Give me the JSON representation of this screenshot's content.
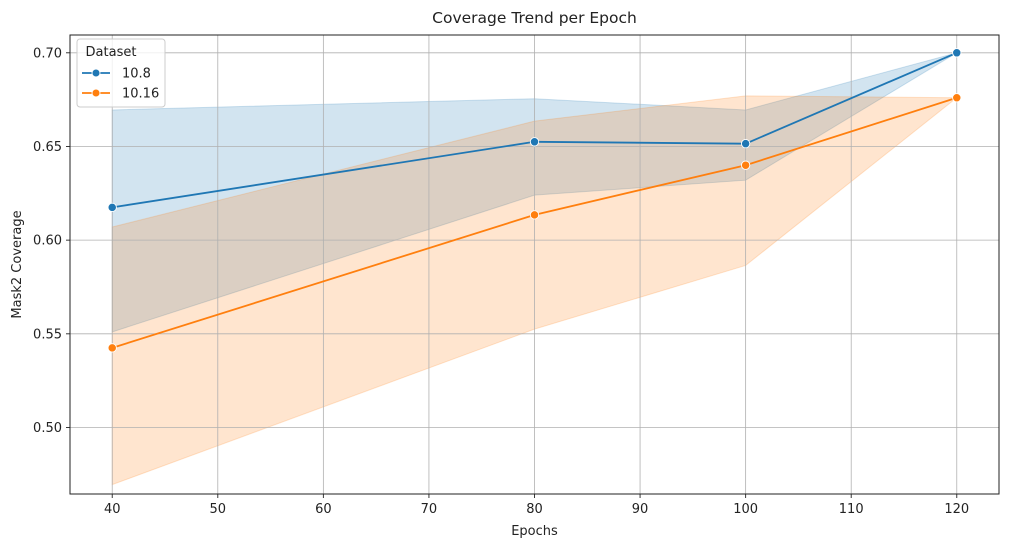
{
  "chart_data": {
    "type": "line",
    "title": "Coverage Trend per Epoch",
    "xlabel": "Epochs",
    "ylabel": "Mask2 Coverage",
    "xlim": [
      36,
      124
    ],
    "ylim": [
      0.4645,
      0.7095
    ],
    "xticks": [
      40,
      50,
      60,
      70,
      80,
      90,
      100,
      110,
      120
    ],
    "yticks": [
      0.5,
      0.55,
      0.6,
      0.65,
      0.7
    ],
    "grid": true,
    "legend": {
      "title": "Dataset",
      "placement": "top-left"
    },
    "series": [
      {
        "name": "10.8",
        "color": "#1f77b4",
        "points": [
          {
            "x": 40,
            "y": 0.6175,
            "lo": 0.551,
            "hi": 0.6695
          },
          {
            "x": 80,
            "y": 0.6525,
            "lo": 0.624,
            "hi": 0.6755
          },
          {
            "x": 100,
            "y": 0.6515,
            "lo": 0.632,
            "hi": 0.6695
          },
          {
            "x": 120,
            "y": 0.7,
            "lo": 0.7,
            "hi": 0.7
          }
        ]
      },
      {
        "name": "10.16",
        "color": "#ff7f0e",
        "points": [
          {
            "x": 40,
            "y": 0.5425,
            "lo": 0.4695,
            "hi": 0.607
          },
          {
            "x": 80,
            "y": 0.6135,
            "lo": 0.5525,
            "hi": 0.6635
          },
          {
            "x": 100,
            "y": 0.64,
            "lo": 0.5865,
            "hi": 0.677
          },
          {
            "x": 120,
            "y": 0.676,
            "lo": 0.676,
            "hi": 0.676
          }
        ]
      }
    ]
  }
}
